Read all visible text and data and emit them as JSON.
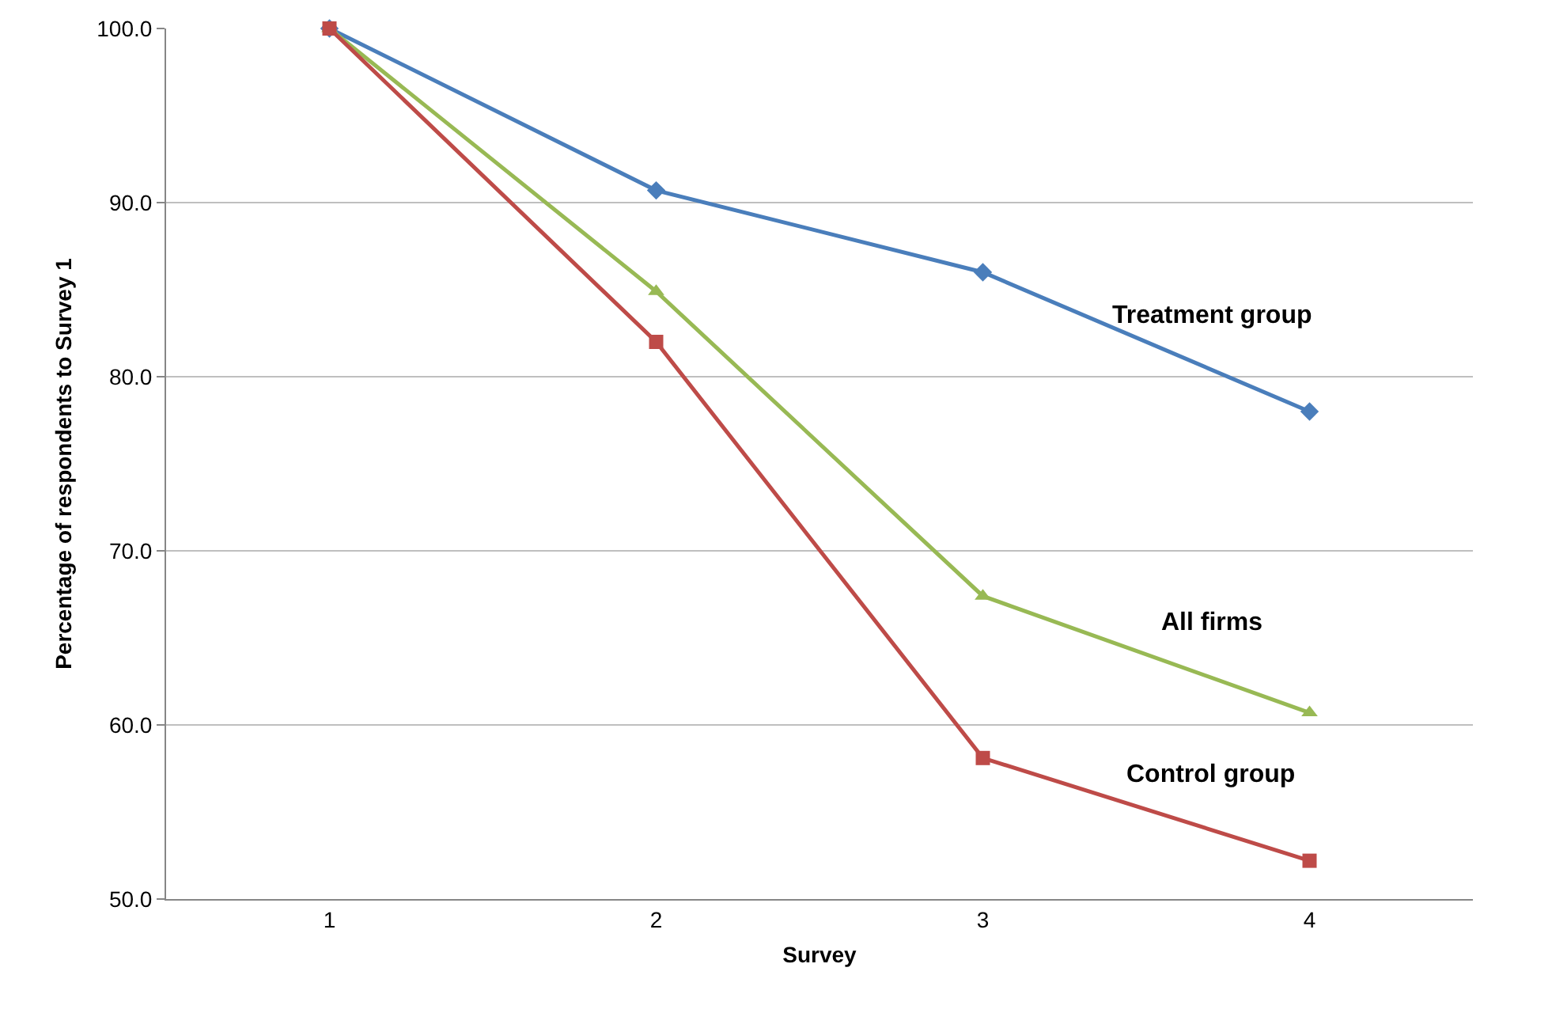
{
  "chart_data": {
    "type": "line",
    "xlabel": "Survey",
    "ylabel": "Percentage of respondents to Survey 1",
    "categories": [
      "1",
      "2",
      "3",
      "4"
    ],
    "ylim": [
      50,
      100
    ],
    "yticks": [
      {
        "value": 50,
        "label": "50.0"
      },
      {
        "value": 60,
        "label": "60.0"
      },
      {
        "value": 70,
        "label": "70.0"
      },
      {
        "value": 80,
        "label": "80.0"
      },
      {
        "value": 90,
        "label": "90.0"
      },
      {
        "value": 100,
        "label": "100.0"
      }
    ],
    "grid": "y",
    "legend": false,
    "line_style": "solid",
    "series": [
      {
        "name": "Treatment group",
        "color": "#4a7ebb",
        "marker": "diamond",
        "values": [
          100,
          90.7,
          86.0,
          78.0
        ]
      },
      {
        "name": "All firms",
        "color": "#98b954",
        "marker": "triangle",
        "values": [
          100,
          84.9,
          67.4,
          60.7
        ]
      },
      {
        "name": "Control group",
        "color": "#be4b48",
        "marker": "square",
        "values": [
          100,
          82.0,
          58.1,
          52.2
        ]
      }
    ]
  }
}
